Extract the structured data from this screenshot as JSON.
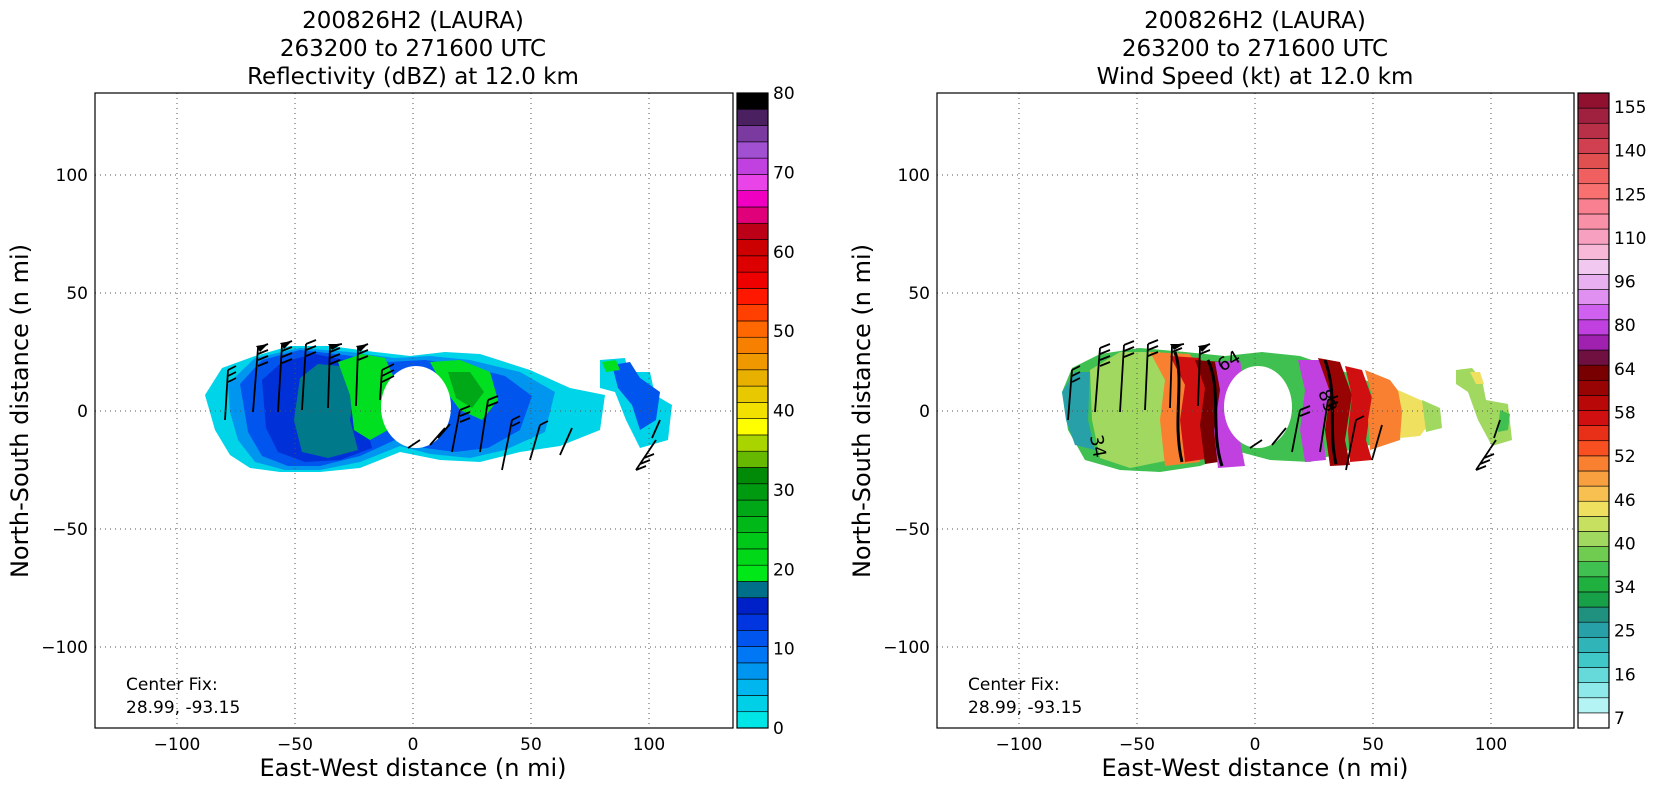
{
  "figure": {
    "panels": [
      {
        "id": "reflectivity",
        "title_lines": [
          "200826H2 (LAURA)",
          "263200 to 271600 UTC",
          "Reflectivity (dBZ) at 12.0 km"
        ],
        "xlabel": "East-West distance (n mi)",
        "ylabel": "North-South distance (n mi)",
        "center_fix_label": "Center Fix:",
        "center_fix_value": "28.99, -93.15"
      },
      {
        "id": "wind-speed",
        "title_lines": [
          "200826H2 (LAURA)",
          "263200 to 271600 UTC",
          "Wind Speed (kt) at 12.0 km"
        ],
        "xlabel": "East-West distance (n mi)",
        "ylabel": "North-South distance (n mi)",
        "center_fix_label": "Center Fix:",
        "center_fix_value": "28.99, -93.15"
      }
    ]
  },
  "chart_data": [
    {
      "type": "heatmap",
      "title": "200826H2 (LAURA) 263200 to 271600 UTC Reflectivity (dBZ) at 12.0 km",
      "xlabel": "East-West distance (n mi)",
      "ylabel": "North-South distance (n mi)",
      "xlim": [
        -135,
        135
      ],
      "ylim": [
        -135,
        135
      ],
      "xticks": [
        -100,
        -50,
        0,
        50,
        100
      ],
      "yticks": [
        -100,
        -50,
        0,
        50,
        100
      ],
      "grid": true,
      "colorbar": {
        "ticks": [
          0,
          10,
          20,
          30,
          40,
          50,
          60,
          70,
          80
        ],
        "range": [
          0,
          80
        ],
        "colors": [
          "#00e5e5",
          "#00cfe8",
          "#00b6ee",
          "#0096f0",
          "#0078f5",
          "#0055ee",
          "#0035e0",
          "#0020c8",
          "#00708a",
          "#00e818",
          "#00d818",
          "#00c818",
          "#00b818",
          "#00a818",
          "#009a10",
          "#008a08",
          "#66b800",
          "#aad400",
          "#ffff00",
          "#f2e000",
          "#e8c800",
          "#e8b000",
          "#f09800",
          "#f88000",
          "#ff6800",
          "#ff4000",
          "#ff1800",
          "#ee0000",
          "#dc0000",
          "#cc0000",
          "#bc0018",
          "#e0007a",
          "#f000c0",
          "#e844e8",
          "#c040e0",
          "#a050d0",
          "#7a3aa0",
          "#4a2060",
          "#000000"
        ]
      },
      "annotations": [
        "Center Fix:",
        "28.99, -93.15"
      ]
    },
    {
      "type": "heatmap",
      "title": "200826H2 (LAURA) 263200 to 271600 UTC Wind Speed (kt) at 12.0 km",
      "xlabel": "East-West distance (n mi)",
      "ylabel": "North-South distance (n mi)",
      "xlim": [
        -135,
        135
      ],
      "ylim": [
        -135,
        135
      ],
      "xticks": [
        -100,
        -50,
        0,
        50,
        100
      ],
      "yticks": [
        -100,
        -50,
        0,
        50,
        100
      ],
      "grid": true,
      "contour_labels": [
        "34",
        "64",
        "83"
      ],
      "colorbar": {
        "ticks": [
          "7",
          "16",
          "25",
          "34",
          "40",
          "46",
          "52",
          "58",
          "64",
          "80",
          "96",
          "110",
          "125",
          "140",
          "155"
        ],
        "colors": [
          "#ffffff",
          "#b4f4f4",
          "#8eeaea",
          "#66dada",
          "#40c8c8",
          "#30b4b8",
          "#28a0a8",
          "#20907f",
          "#18a048",
          "#20b040",
          "#40c050",
          "#70cc50",
          "#a0d860",
          "#c8e060",
          "#f0e060",
          "#f8c050",
          "#f8a040",
          "#f88030",
          "#f85020",
          "#e83018",
          "#d01010",
          "#b80808",
          "#980404",
          "#780000",
          "#701040",
          "#a020b0",
          "#c040e0",
          "#d060f0",
          "#e090f0",
          "#e8b0f0",
          "#f0c8f0",
          "#f8b8d8",
          "#f8a0c0",
          "#f890a8",
          "#f88090",
          "#f87070",
          "#f06060",
          "#e05050",
          "#d04050",
          "#b83048",
          "#a02040",
          "#901030"
        ]
      },
      "annotations": [
        "Center Fix:",
        "28.99, -93.15"
      ]
    }
  ]
}
